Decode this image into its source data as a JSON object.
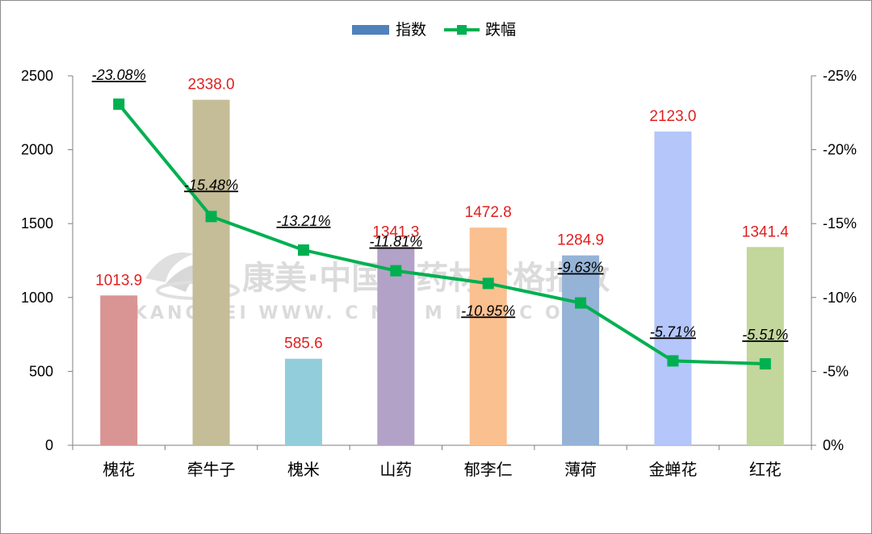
{
  "chart_data": {
    "type": "bar",
    "categories": [
      "槐花",
      "牵牛子",
      "槐米",
      "山药",
      "郁李仁",
      "薄荷",
      "金蝉花",
      "红花"
    ],
    "series": [
      {
        "name": "指数",
        "type": "bar",
        "axis": "left",
        "values": [
          1013.9,
          2338.0,
          585.6,
          1341.3,
          1472.8,
          1284.9,
          2123.0,
          1341.4
        ],
        "labels": [
          "1013.9",
          "2338.0",
          "585.6",
          "1341.3",
          "1472.8",
          "1284.9",
          "2123.0",
          "1341.4"
        ],
        "colors": [
          "#d99594",
          "#c4bd97",
          "#92cddc",
          "#b3a2c7",
          "#fac090",
          "#95b3d7",
          "#b4c6fa",
          "#c3d69b"
        ]
      },
      {
        "name": "跌幅",
        "type": "line",
        "axis": "right",
        "values": [
          -23.08,
          -15.48,
          -13.21,
          -11.81,
          -10.95,
          -9.63,
          -5.71,
          -5.51
        ],
        "labels": [
          "-23.08%",
          "-15.48%",
          "-13.21%",
          "-11.81%",
          "-10.95%",
          "-9.63%",
          "-5.71%",
          "-5.51%"
        ],
        "color": "#00b050"
      }
    ],
    "y_left": {
      "min": 0,
      "max": 2500,
      "ticks": [
        "0",
        "500",
        "1000",
        "1500",
        "2000",
        "2500"
      ]
    },
    "y_right": {
      "min": 0,
      "max": -25,
      "reversed": true,
      "ticks": [
        "0%",
        "-5%",
        "-10%",
        "-15%",
        "-20%",
        "-25%"
      ]
    },
    "legend": {
      "position": "top"
    },
    "grid": false
  },
  "watermark": {
    "cn": "康美·中国中药材价格指数",
    "en": "KANGMEI WWW. C N K M I C . C O M"
  }
}
